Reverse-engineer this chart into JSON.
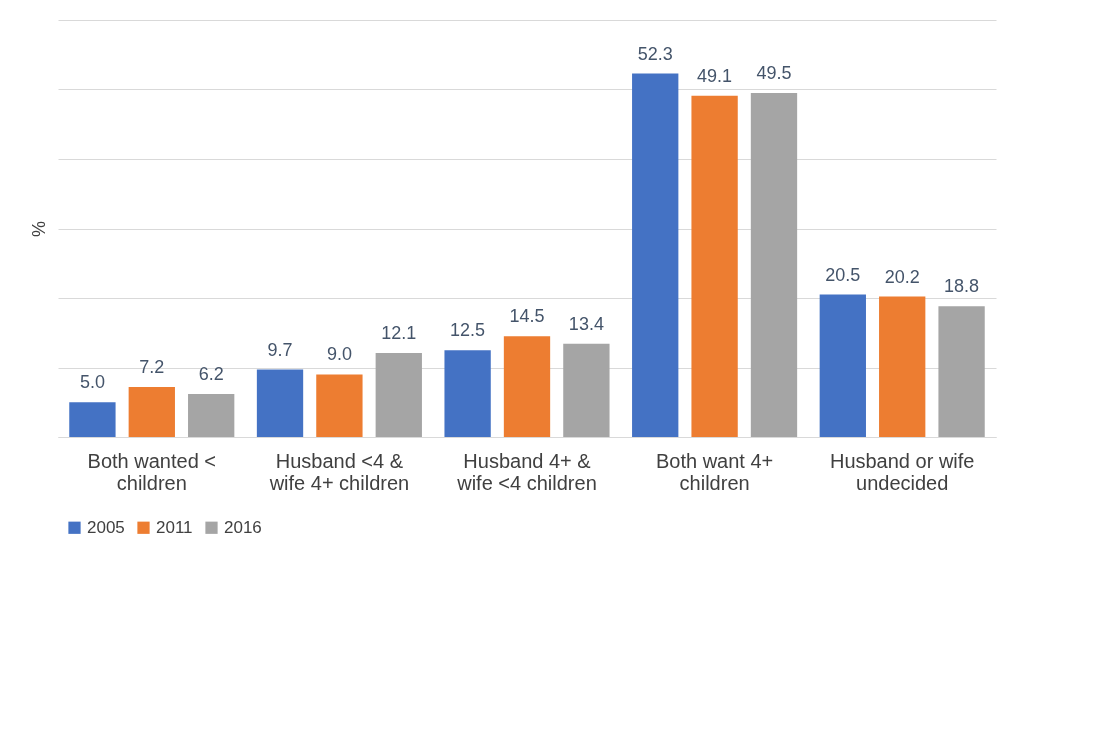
{
  "chart_data": {
    "type": "bar",
    "ylabel": "%",
    "categories": [
      "Both wanted < children",
      "Husband <4 & wife 4+ children",
      "Husband 4+ & wife <4 children",
      "Both want 4+ children",
      "Husband or wife undecided"
    ],
    "series": [
      {
        "name": "2005",
        "color": "#4472c4",
        "values": [
          5.0,
          9.7,
          12.5,
          52.3,
          20.5
        ],
        "value_labels": [
          "5.0",
          "9.7",
          "12.5",
          "52.3",
          "20.5"
        ]
      },
      {
        "name": "2011",
        "color": "#ed7d31",
        "values": [
          7.2,
          9.0,
          14.5,
          49.1,
          20.2
        ],
        "value_labels": [
          "7.2",
          "9.0",
          "14.5",
          "49.1",
          "20.2"
        ]
      },
      {
        "name": "2016",
        "color": "#a5a5a5",
        "values": [
          6.2,
          12.1,
          13.4,
          49.5,
          18.8
        ],
        "value_labels": [
          "6.2",
          "12.1",
          "13.4",
          "49.5",
          "18.8"
        ]
      }
    ],
    "ylim": [
      0,
      60
    ],
    "yticks": [
      {
        "value": 0,
        "label": null
      },
      {
        "value": 10,
        "label": null
      },
      {
        "value": 20,
        "label": null
      },
      {
        "value": 30,
        "label": null
      },
      {
        "value": 40,
        "label": null
      },
      {
        "value": 50,
        "label": null
      },
      {
        "value": 60,
        "label": null
      }
    ],
    "grid": "y",
    "tick_labels": "x",
    "legend": "bottom"
  }
}
